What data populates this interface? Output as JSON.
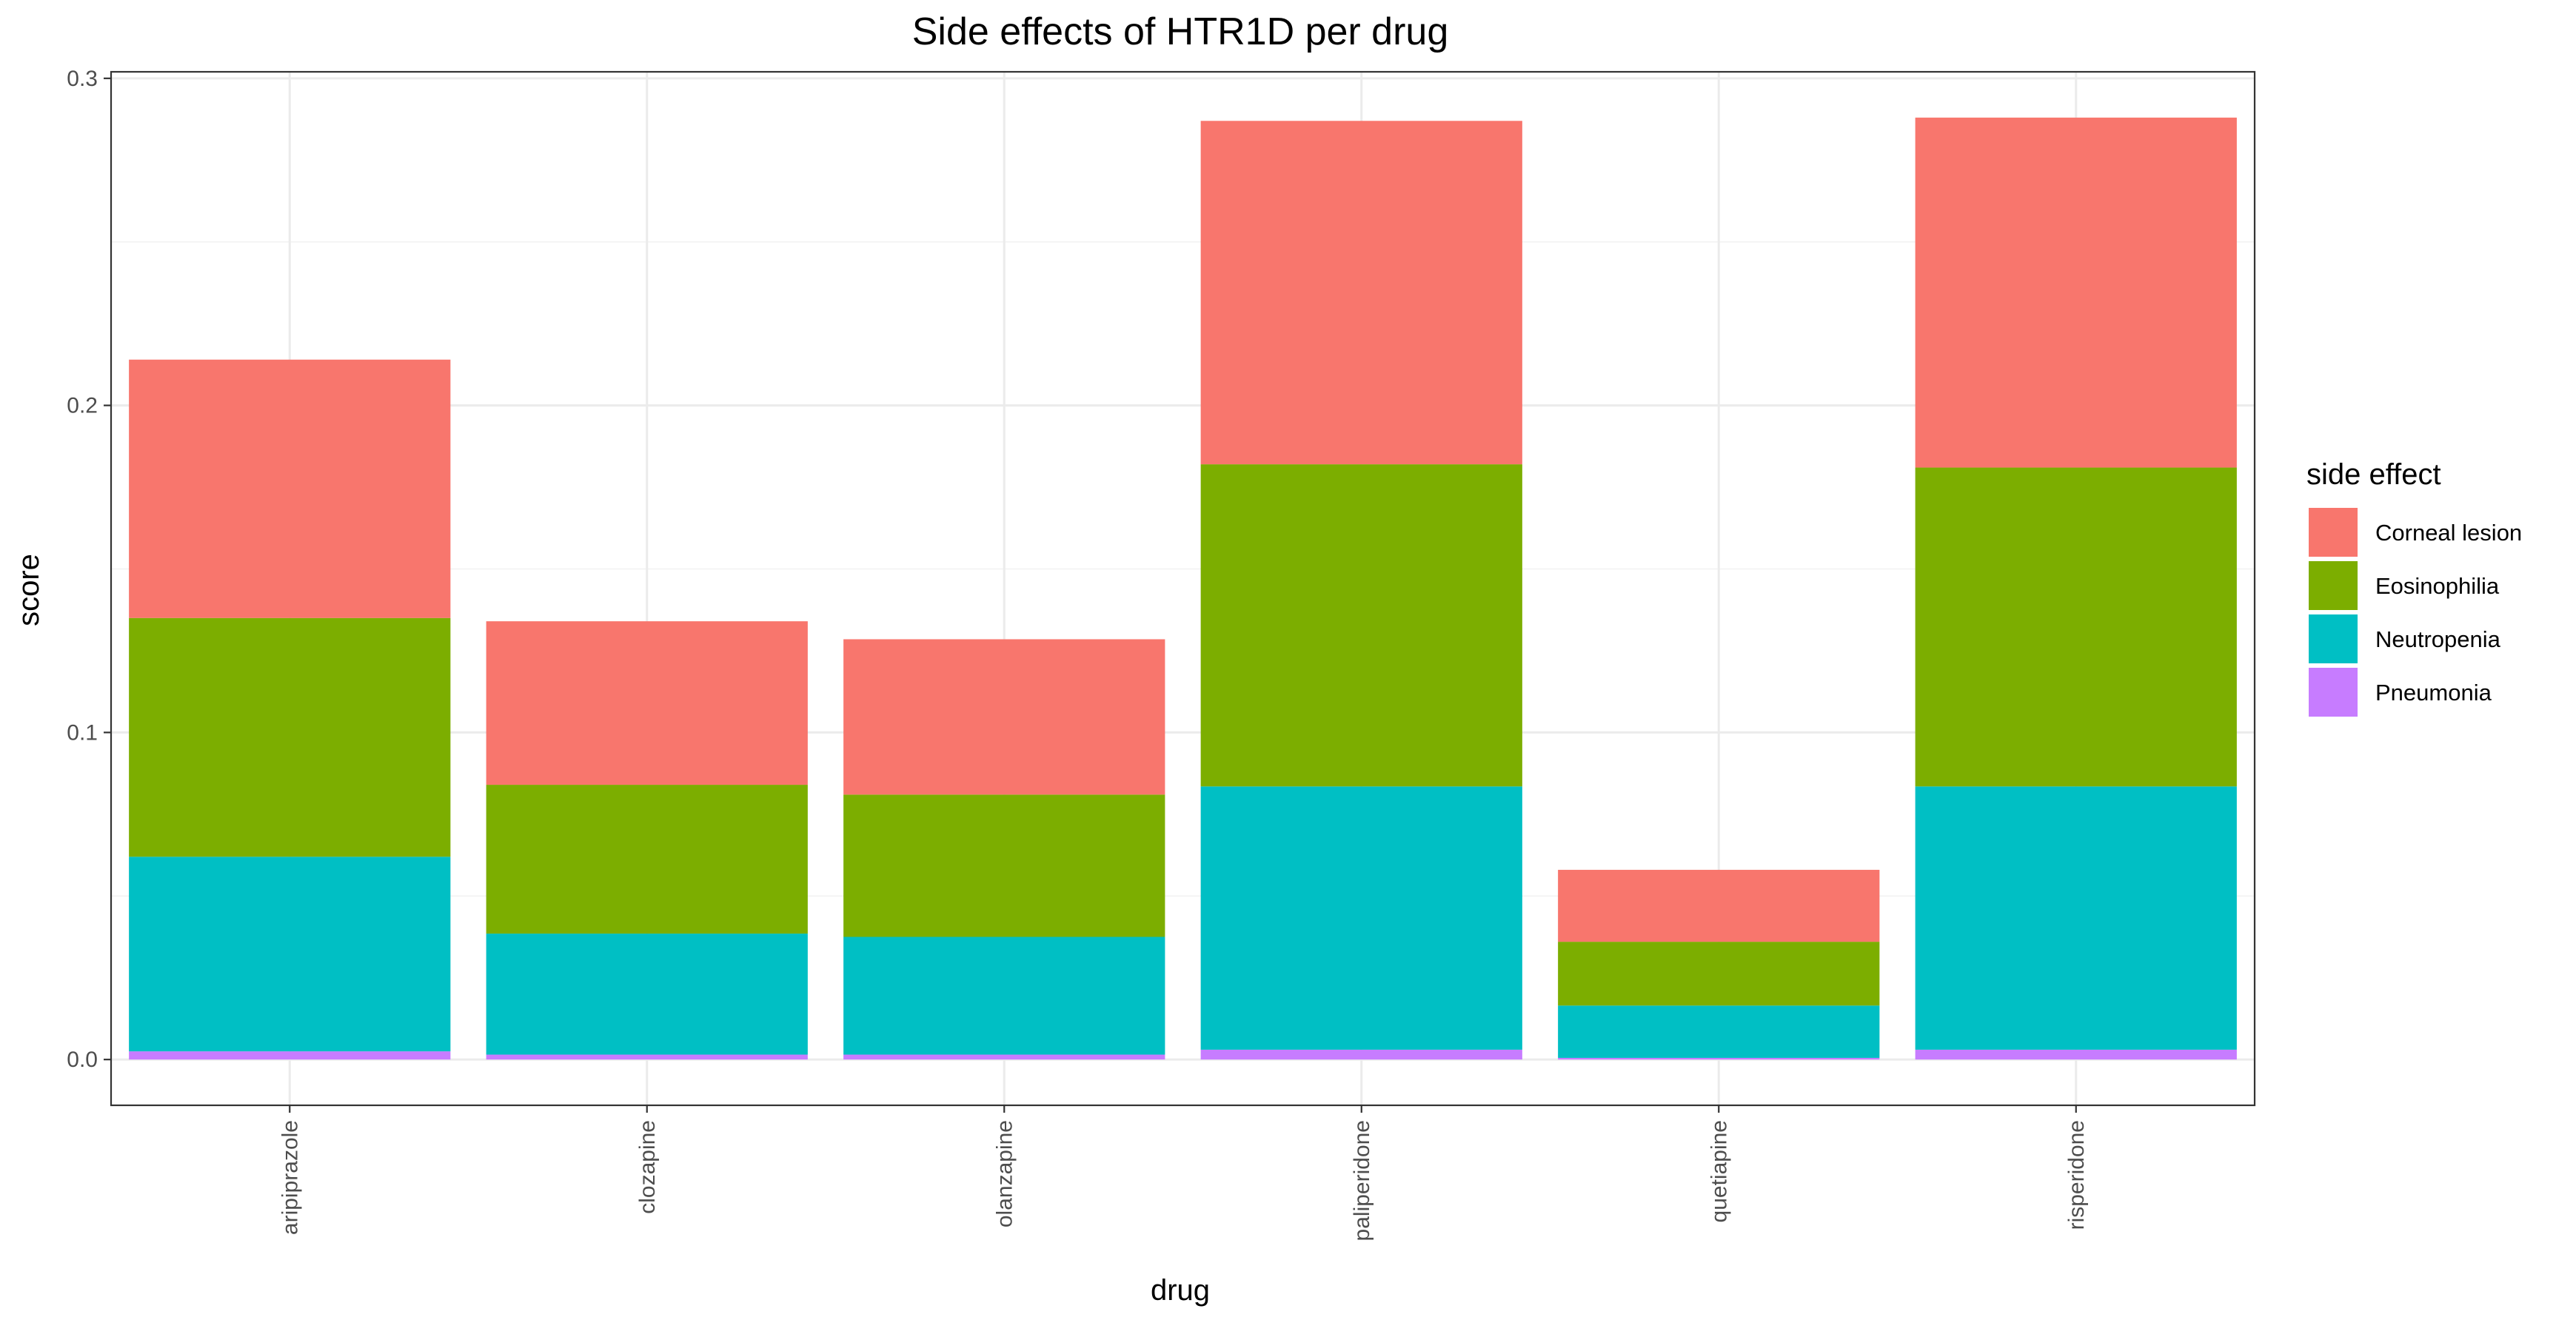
{
  "chart_data": {
    "type": "bar",
    "stacked": true,
    "title": "Side effects of HTR1D per drug",
    "xlabel": "drug",
    "ylabel": "score",
    "ylim": [
      -0.014,
      0.302
    ],
    "y_ticks": [
      0.0,
      0.1,
      0.2,
      0.3
    ],
    "y_tick_labels": [
      "0.0",
      "0.1",
      "0.2",
      "0.3"
    ],
    "grid": true,
    "categories": [
      "aripiprazole",
      "clozapine",
      "olanzapine",
      "paliperidone",
      "quetiapine",
      "risperidone"
    ],
    "series": [
      {
        "name": "Pneumonia",
        "color": "#C77CFF",
        "values": [
          0.0025,
          0.0015,
          0.0015,
          0.003,
          0.0005,
          0.003
        ]
      },
      {
        "name": "Neutropenia",
        "color": "#00BFC4",
        "values": [
          0.0595,
          0.037,
          0.036,
          0.0805,
          0.016,
          0.0805
        ]
      },
      {
        "name": "Eosinophilia",
        "color": "#7CAE00",
        "values": [
          0.073,
          0.0455,
          0.0435,
          0.0985,
          0.0195,
          0.0975
        ]
      },
      {
        "name": "Corneal lesion",
        "color": "#F8766D",
        "values": [
          0.079,
          0.05,
          0.0475,
          0.105,
          0.022,
          0.107
        ]
      }
    ],
    "legend": {
      "title": "side effect",
      "placement": "right",
      "order": [
        "Corneal lesion",
        "Eosinophilia",
        "Neutropenia",
        "Pneumonia"
      ]
    }
  }
}
